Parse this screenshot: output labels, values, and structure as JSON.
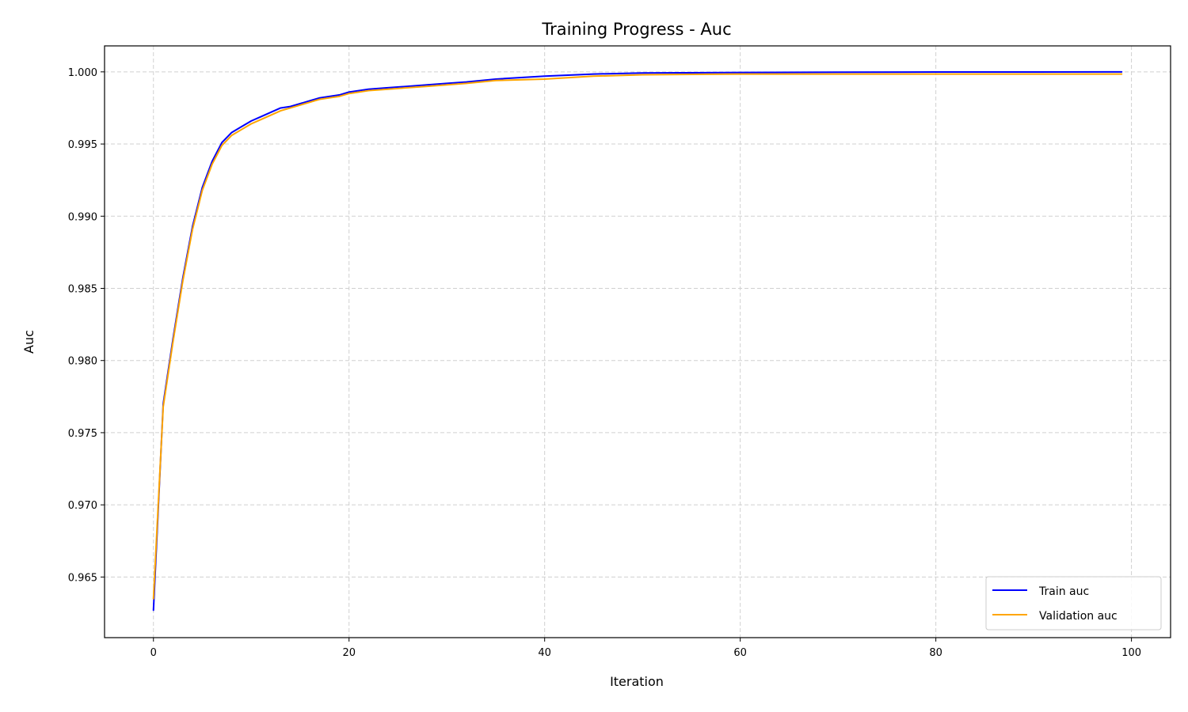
{
  "chart_data": {
    "type": "line",
    "title": "Training Progress - Auc",
    "xlabel": "Iteration",
    "ylabel": "Auc",
    "xlim": [
      -5,
      104
    ],
    "ylim": [
      0.9608,
      1.0018
    ],
    "xticks": [
      0,
      20,
      40,
      60,
      80,
      100
    ],
    "yticks": [
      0.965,
      0.97,
      0.975,
      0.98,
      0.985,
      0.99,
      0.995,
      1.0
    ],
    "ytick_labels": [
      "0.965",
      "0.970",
      "0.975",
      "0.980",
      "0.985",
      "0.990",
      "0.995",
      "1.000"
    ],
    "grid": true,
    "legend_position": "bottom-right",
    "series": [
      {
        "name": "Train auc",
        "color": "#0000ff",
        "x": [
          0,
          1,
          2,
          3,
          4,
          5,
          6,
          7,
          8,
          9,
          10,
          11,
          12,
          13,
          14,
          15,
          16,
          17,
          18,
          19,
          20,
          22,
          24,
          26,
          28,
          30,
          32,
          35,
          40,
          45,
          50,
          60,
          70,
          80,
          90,
          99
        ],
        "values": [
          0.9627,
          0.977,
          0.9815,
          0.9857,
          0.9893,
          0.992,
          0.9938,
          0.9951,
          0.9958,
          0.9962,
          0.9966,
          0.9969,
          0.9972,
          0.9975,
          0.9976,
          0.9978,
          0.998,
          0.9982,
          0.9983,
          0.9984,
          0.9986,
          0.9988,
          0.9989,
          0.999,
          0.9991,
          0.9992,
          0.9993,
          0.9995,
          0.9997,
          0.99985,
          0.99992,
          0.99996,
          0.99998,
          0.99999,
          0.99999,
          1.0
        ]
      },
      {
        "name": "Validation auc",
        "color": "#ffa500",
        "x": [
          0,
          1,
          2,
          3,
          4,
          5,
          6,
          7,
          8,
          9,
          10,
          11,
          12,
          13,
          14,
          15,
          16,
          17,
          18,
          19,
          20,
          22,
          24,
          26,
          28,
          30,
          32,
          35,
          40,
          45,
          50,
          60,
          70,
          80,
          90,
          99
        ],
        "values": [
          0.9635,
          0.9768,
          0.9813,
          0.9855,
          0.9891,
          0.9918,
          0.9936,
          0.9949,
          0.9956,
          0.996,
          0.9964,
          0.9967,
          0.997,
          0.9973,
          0.9975,
          0.9977,
          0.9979,
          0.9981,
          0.9982,
          0.9983,
          0.9985,
          0.9987,
          0.9988,
          0.9989,
          0.999,
          0.9991,
          0.9992,
          0.9994,
          0.9995,
          0.9997,
          0.9998,
          0.99985,
          0.99985,
          0.99985,
          0.99985,
          0.99985
        ]
      }
    ]
  }
}
